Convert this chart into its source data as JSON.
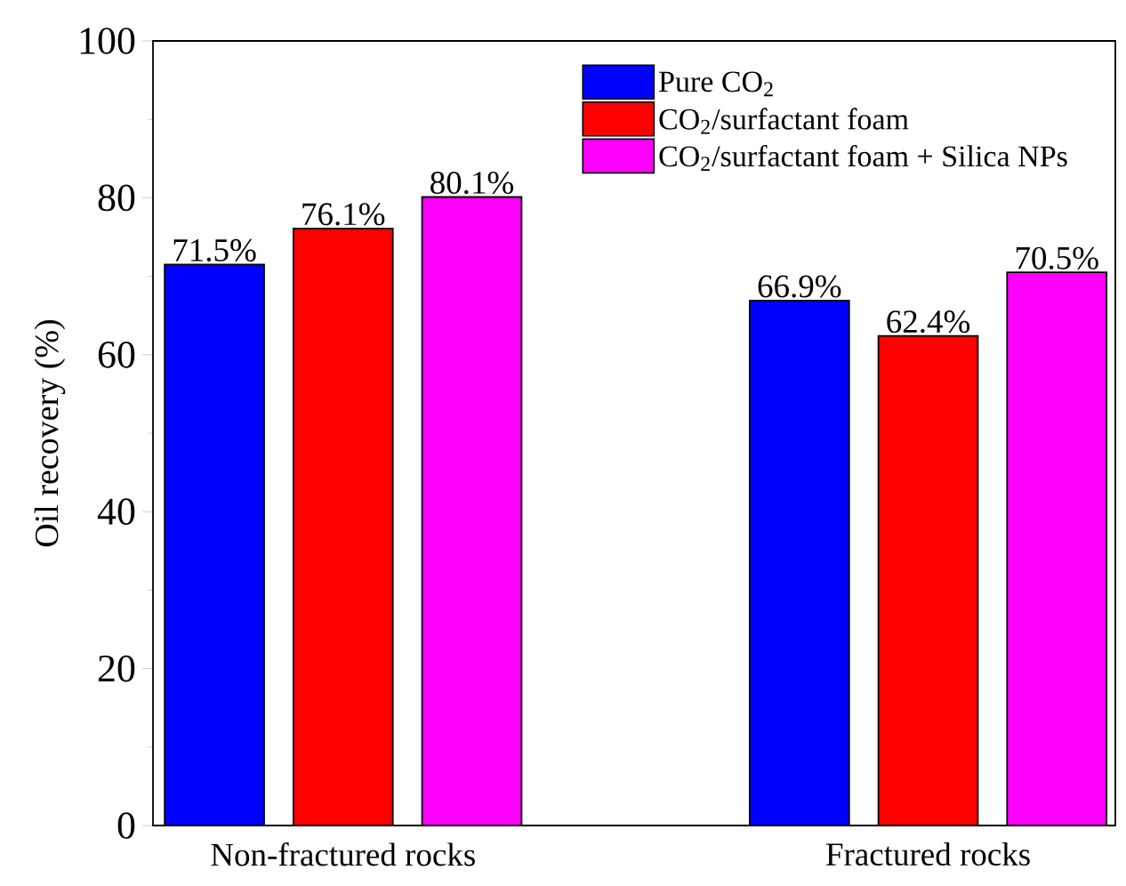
{
  "chart_data": {
    "type": "bar",
    "ylabel": "Oil recovery (%)",
    "categories": [
      "Non-fractured rocks",
      "Fractured rocks"
    ],
    "series": [
      {
        "name": "Pure CO$_{2}$",
        "color": "#0000ff",
        "values": [
          71.5,
          66.9
        ],
        "value_labels": [
          "71.5%",
          "66.9%"
        ]
      },
      {
        "name": "CO$_{2}$/surfactant foam",
        "color": "#ff0000",
        "values": [
          76.1,
          62.4
        ],
        "value_labels": [
          "76.1%",
          "62.4%"
        ]
      },
      {
        "name": "CO$_{2}$/surfactant foam + Silica NPs",
        "color": "#ff00ff",
        "values": [
          80.1,
          70.5
        ],
        "value_labels": [
          "80.1%",
          "70.5%"
        ]
      }
    ],
    "ylim": [
      0,
      100
    ],
    "yticks": [
      0,
      20,
      40,
      60,
      80,
      100
    ],
    "legend": "top right",
    "grid": false
  }
}
